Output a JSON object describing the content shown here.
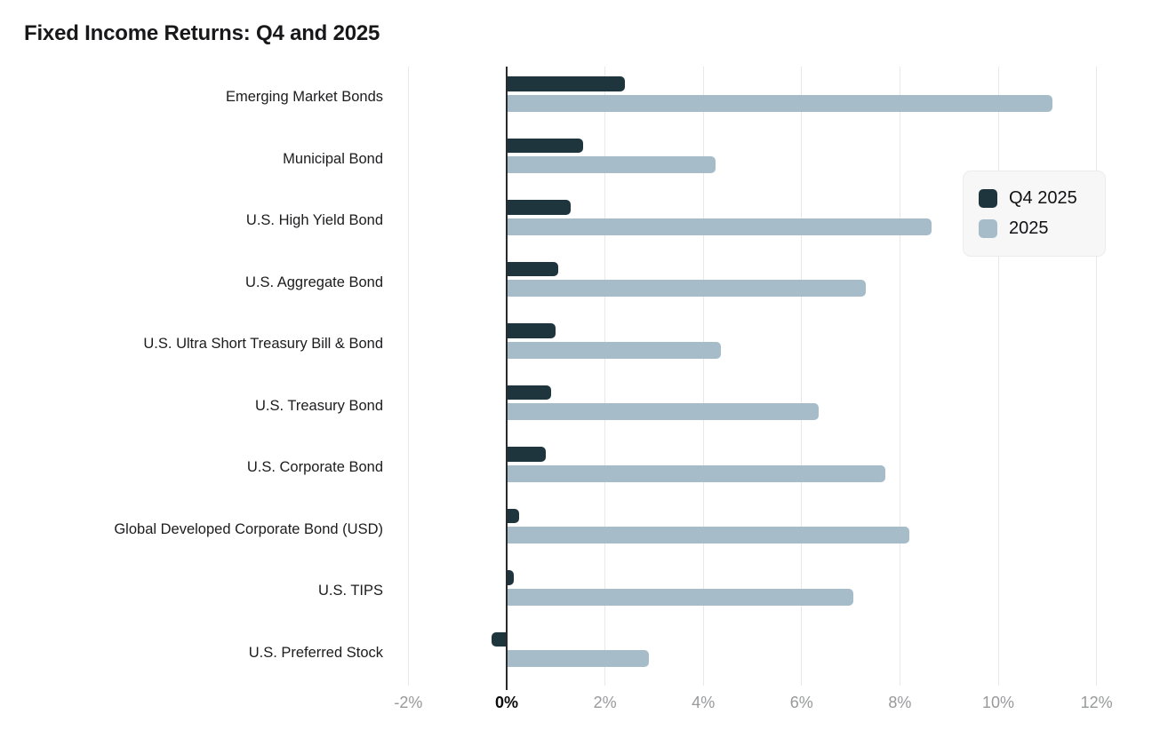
{
  "title": "Fixed Income Returns: Q4 and 2025",
  "colors": {
    "q4_series": "#1f353d",
    "year_series": "#a6bdc9",
    "gridline": "#e8e8ea",
    "zero_line": "#2b2b2e",
    "axis_label": "#98999b",
    "axis_label_zero": "#0b0b0c",
    "category_label": "#1c1c1e",
    "legend_bg": "#f7f7f8",
    "legend_border": "#ececee"
  },
  "legend": {
    "items": [
      {
        "label": "Q4 2025",
        "color_key": "q4_series"
      },
      {
        "label": "2025",
        "color_key": "year_series"
      }
    ]
  },
  "chart_data": {
    "type": "bar",
    "orientation": "horizontal",
    "title": "Fixed Income Returns: Q4 and 2025",
    "categories": [
      "Emerging Market Bonds",
      "Municipal Bond",
      "U.S. High Yield Bond",
      "U.S. Aggregate Bond",
      "U.S. Ultra Short Treasury Bill & Bond",
      "U.S. Treasury Bond",
      "U.S. Corporate Bond",
      "Global Developed Corporate Bond (USD)",
      "U.S. TIPS",
      "U.S. Preferred Stock"
    ],
    "series": [
      {
        "name": "Q4 2025",
        "values": [
          2.4,
          1.55,
          1.3,
          1.05,
          1.0,
          0.9,
          0.8,
          0.25,
          0.15,
          -0.3
        ]
      },
      {
        "name": "2025",
        "values": [
          11.1,
          4.25,
          8.65,
          7.3,
          4.35,
          6.35,
          7.7,
          8.2,
          7.05,
          2.9
        ]
      }
    ],
    "value_unit": "%",
    "x_ticks": [
      -2,
      0,
      2,
      4,
      6,
      8,
      10,
      12
    ],
    "x_tick_labels": [
      "-2%",
      "0%",
      "2%",
      "4%",
      "6%",
      "8%",
      "10%",
      "12%"
    ],
    "xlim": [
      -2.5,
      12.6
    ],
    "grid": true,
    "legend_position": "right"
  }
}
